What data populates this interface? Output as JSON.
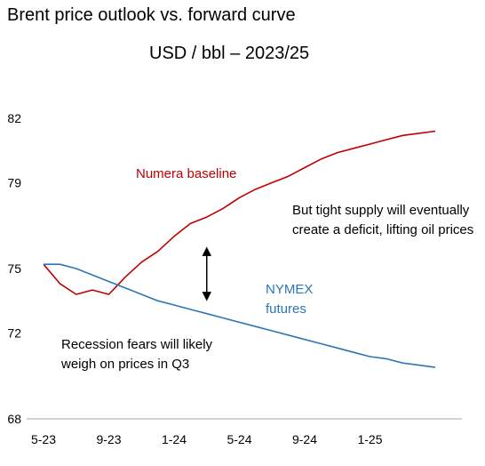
{
  "title": "Brent price outlook vs. forward curve",
  "subtitle": "USD / bbl – 2023/25",
  "chart_data": {
    "type": "line",
    "title": "Brent price outlook vs. forward curve",
    "subtitle": "USD / bbl – 2023/25",
    "xlabel": "",
    "ylabel": "",
    "grid": false,
    "legend": "none",
    "ylim": [
      68,
      82
    ],
    "y_ticks": [
      "82",
      "79",
      "75",
      "72",
      "68"
    ],
    "y_tick_values": [
      82,
      79,
      75,
      72,
      68
    ],
    "x_ticks": [
      "5-23",
      "9-23",
      "1-24",
      "5-24",
      "9-24",
      "1-25"
    ],
    "x_tick_values": [
      0,
      4,
      8,
      12,
      16,
      20
    ],
    "x": [
      0,
      1,
      2,
      3,
      4,
      5,
      6,
      7,
      8,
      9,
      10,
      11,
      12,
      13,
      14,
      15,
      16,
      17,
      18,
      19,
      20,
      21,
      22,
      23,
      24
    ],
    "series": [
      {
        "name": "Numera baseline",
        "color": "#c00000",
        "values": [
          75.2,
          74.3,
          73.8,
          74.0,
          73.8,
          74.6,
          75.3,
          75.8,
          76.5,
          77.1,
          77.4,
          77.8,
          78.3,
          78.7,
          79.0,
          79.3,
          79.7,
          80.1,
          80.4,
          80.6,
          80.8,
          81.0,
          81.2,
          81.3,
          81.4
        ]
      },
      {
        "name": "NYMEX futures",
        "color": "#2e75b6",
        "values": [
          75.2,
          75.2,
          75.0,
          74.7,
          74.4,
          74.1,
          73.8,
          73.5,
          73.3,
          73.1,
          72.9,
          72.7,
          72.5,
          72.3,
          72.1,
          71.9,
          71.7,
          71.5,
          71.3,
          71.1,
          70.9,
          70.8,
          70.6,
          70.5,
          70.4
        ]
      }
    ],
    "annotations": {
      "recession": [
        "Recession fears will likely",
        "weigh on prices in Q3"
      ],
      "supply": [
        "But tight supply will eventually",
        "create a deficit, lifting oil prices"
      ],
      "numera_label": "Numera baseline",
      "nymex_label": [
        "NYMEX",
        "futures"
      ]
    },
    "arrow": {
      "x": 10,
      "y_from": 75.8,
      "y_to": 73.7,
      "color": "#000000"
    }
  }
}
